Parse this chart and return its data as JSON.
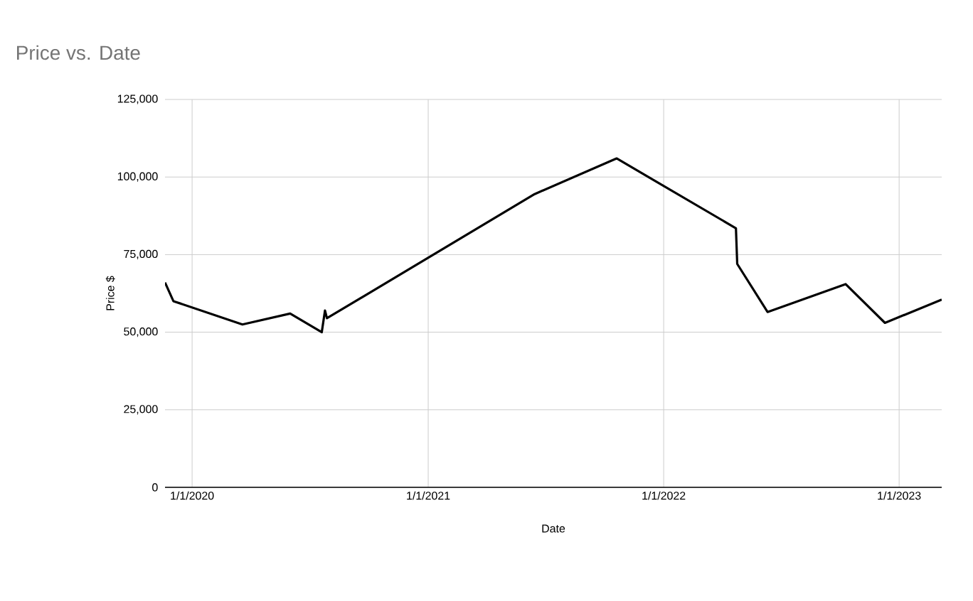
{
  "chart_data": {
    "type": "line",
    "title": "Price  vs. Date",
    "xlabel": "Date",
    "ylabel": "Price $",
    "x": [
      "2019-11-20",
      "2019-12-03",
      "2020-03-19",
      "2020-06-01",
      "2020-07-20",
      "2020-07-25",
      "2020-07-28",
      "2021-06-15",
      "2021-10-20",
      "2022-04-23",
      "2022-04-25",
      "2022-06-11",
      "2022-10-10",
      "2022-12-10",
      "2023-03-08"
    ],
    "series": [
      {
        "color": "#000000",
        "values": [
          66000,
          60000,
          52500,
          56000,
          50000,
          57000,
          54500,
          94500,
          106000,
          83500,
          72000,
          56500,
          65500,
          53000,
          60500
        ]
      }
    ],
    "xlim": [
      "2019-11-20",
      "2023-03-08"
    ],
    "xticks": [
      {
        "value": "2020-01-01",
        "label": "1/1/2020"
      },
      {
        "value": "2021-01-01",
        "label": "1/1/2021"
      },
      {
        "value": "2022-01-01",
        "label": "1/1/2022"
      },
      {
        "value": "2023-01-01",
        "label": "1/1/2023"
      }
    ],
    "ylim": [
      0,
      125000
    ],
    "yticks": [
      {
        "value": 0,
        "label": "0"
      },
      {
        "value": 25000,
        "label": "25,000"
      },
      {
        "value": 50000,
        "label": "50,000"
      },
      {
        "value": 75000,
        "label": "75,000"
      },
      {
        "value": 100000,
        "label": "100,000"
      },
      {
        "value": 125000,
        "label": "125,000"
      }
    ],
    "grid": true,
    "marker": "none",
    "line_style": "solid"
  }
}
